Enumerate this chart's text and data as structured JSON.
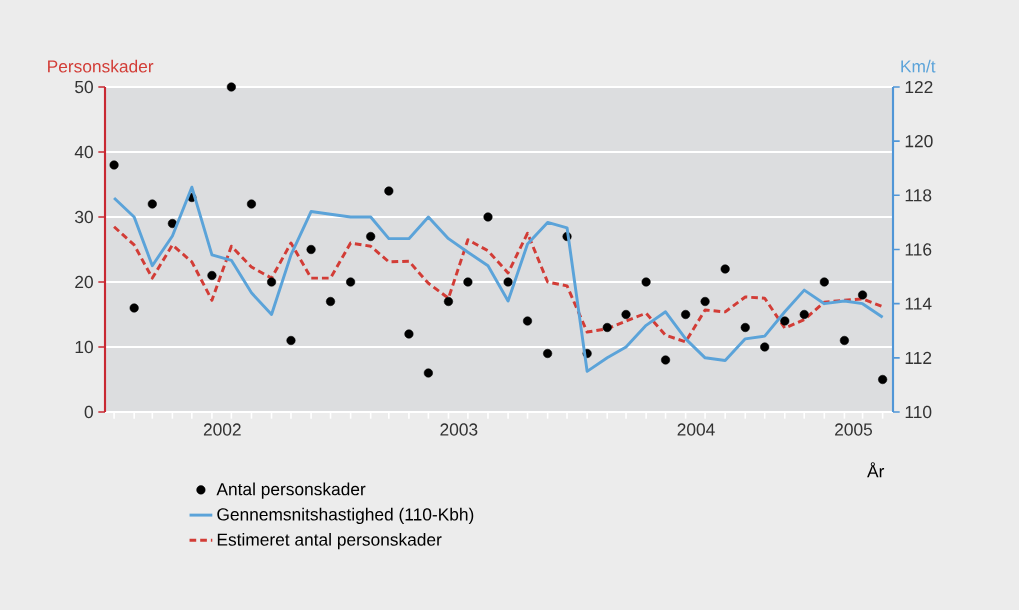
{
  "chart_data": {
    "type": "line",
    "ylabel": "Personskader",
    "y2label": "Km/t",
    "xlabel": "År",
    "x": [
      "2002-01-15",
      "2002-02-15",
      "2002-03-15",
      "2002-04-15",
      "2002-05-15",
      "2002-06-15",
      "2002-07-15",
      "2002-08-15",
      "2002-09-15",
      "2002-10-15",
      "2002-11-15",
      "2002-12-15",
      "2003-01-15",
      "2003-02-15",
      "2003-03-15",
      "2003-04-15",
      "2003-05-15",
      "2003-06-15",
      "2003-07-15",
      "2003-08-15",
      "2003-09-15",
      "2003-10-15",
      "2003-11-15",
      "2003-12-15",
      "2004-01-15",
      "2004-02-15",
      "2004-03-15",
      "2004-04-15",
      "2004-05-15",
      "2004-06-15",
      "2004-07-15",
      "2004-08-15",
      "2004-09-15",
      "2004-10-15",
      "2004-11-15",
      "2004-12-15",
      "2005-01-15",
      "2005-02-15",
      "2005-03-15",
      "2005-04-15"
    ],
    "series": [
      {
        "name": "Antal personskader",
        "type": "scatter",
        "color": "#000000",
        "values": [
          38,
          16,
          32,
          29,
          33,
          21,
          50,
          32,
          20,
          11,
          25,
          17,
          20,
          27,
          34,
          12,
          6,
          17,
          20,
          30,
          20,
          14,
          9,
          27,
          9,
          13,
          15,
          20,
          8,
          15,
          17,
          22,
          13,
          10,
          14,
          15,
          20,
          11,
          18,
          5
        ]
      },
      {
        "name": "Gennemsnitshastighed (110-Kbh)",
        "axis": "y2",
        "color": "#5ba3d9",
        "line_style": "solid",
        "values": [
          117.9,
          117.2,
          115.4,
          116.5,
          118.3,
          115.8,
          115.6,
          114.4,
          113.6,
          115.8,
          117.4,
          117.3,
          117.2,
          117.2,
          116.4,
          116.4,
          117.2,
          116.4,
          115.9,
          115.4,
          114.1,
          116.2,
          117.0,
          116.8,
          111.5,
          112.0,
          112.4,
          113.2,
          113.7,
          112.7,
          112.0,
          111.9,
          112.7,
          112.8,
          113.7,
          114.5,
          114.0,
          114.1,
          114.0,
          113.5
        ]
      },
      {
        "name": "Estimeret antal personskader",
        "type": "line",
        "color": "#d23c36",
        "line_style": "dashed",
        "values": [
          28.5,
          25.7,
          20.6,
          25.7,
          23.1,
          17.2,
          25.5,
          22.3,
          20.6,
          26.0,
          20.6,
          20.6,
          26.0,
          25.5,
          23.1,
          23.2,
          19.8,
          17.5,
          26.5,
          24.8,
          21.4,
          27.5,
          20.0,
          19.4,
          12.3,
          12.8,
          14.0,
          15.2,
          11.8,
          10.8,
          15.7,
          15.4,
          17.7,
          17.5,
          12.9,
          14.2,
          16.9,
          17.2,
          17.4,
          16.2
        ]
      }
    ],
    "xlim": [
      "2002-01-01",
      "2005-05-01"
    ],
    "xticks": [
      {
        "value": "2002-07-01",
        "label": "2002"
      },
      {
        "value": "2003-07-01",
        "label": "2003"
      },
      {
        "value": "2004-07-01",
        "label": "2004"
      },
      {
        "value": "2005-03-01",
        "label": "2005"
      }
    ],
    "ylim": [
      0,
      50
    ],
    "yticks": [
      0,
      10,
      20,
      30,
      40,
      50
    ],
    "y2lim": [
      110,
      122
    ],
    "y2ticks": [
      110,
      112,
      114,
      116,
      118,
      120,
      122
    ],
    "grid": "y",
    "legend": "bottom"
  }
}
